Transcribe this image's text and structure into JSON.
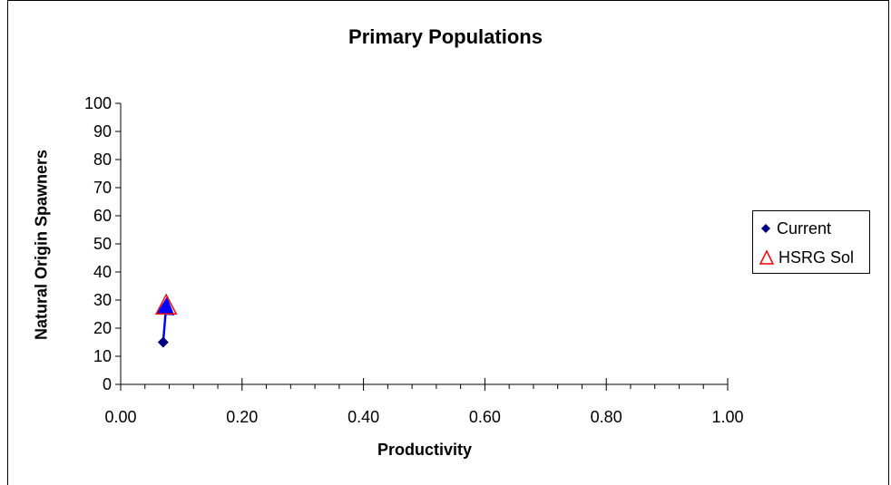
{
  "chart_data": {
    "type": "scatter",
    "title": "Primary Populations",
    "xlabel": "Productivity",
    "ylabel": "Natural Origin Spawners",
    "xlim": [
      0.0,
      1.0
    ],
    "ylim": [
      0,
      100
    ],
    "x_ticks": [
      "0.00",
      "0.20",
      "0.40",
      "0.60",
      "0.80",
      "1.00"
    ],
    "y_ticks": [
      "0",
      "10",
      "20",
      "30",
      "40",
      "50",
      "60",
      "70",
      "80",
      "90",
      "100"
    ],
    "grid": false,
    "legend_position": "right",
    "series": [
      {
        "name": "Current",
        "marker": "diamond",
        "color": "#000080",
        "points": [
          {
            "x": 0.07,
            "y": 15
          }
        ]
      },
      {
        "name": "HSRG Sol",
        "marker": "triangle-open",
        "color": "#ff0000",
        "points": [
          {
            "x": 0.075,
            "y": 28
          }
        ]
      }
    ],
    "arrows": [
      {
        "from": {
          "x": 0.07,
          "y": 15
        },
        "to": {
          "x": 0.075,
          "y": 28
        },
        "color": "#0000ff"
      }
    ]
  }
}
